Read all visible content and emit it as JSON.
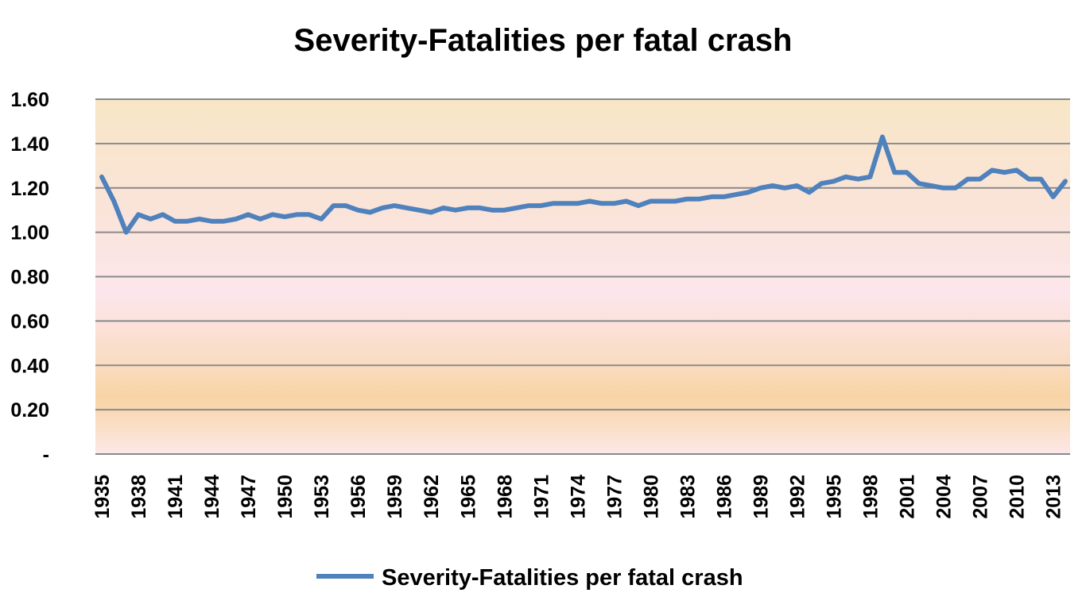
{
  "chart_data": {
    "type": "line",
    "title": "Severity-Fatalities per fatal crash",
    "xlabel": "",
    "ylabel": "",
    "ylim": [
      0,
      1.6
    ],
    "y_ticks": [
      "-",
      "0.20",
      "0.40",
      "0.60",
      "0.80",
      "1.00",
      "1.20",
      "1.40",
      "1.60"
    ],
    "x_tick_labels": [
      "1935",
      "1938",
      "1941",
      "1944",
      "1947",
      "1950",
      "1953",
      "1956",
      "1959",
      "1962",
      "1965",
      "1968",
      "1971",
      "1974",
      "1977",
      "1980",
      "1983",
      "1986",
      "1989",
      "1992",
      "1995",
      "1998",
      "2001",
      "2004",
      "2007",
      "2010",
      "2013"
    ],
    "grid": true,
    "legend_position": "bottom",
    "x": [
      1935,
      1936,
      1937,
      1938,
      1939,
      1940,
      1941,
      1942,
      1943,
      1944,
      1945,
      1946,
      1947,
      1948,
      1949,
      1950,
      1951,
      1952,
      1953,
      1954,
      1955,
      1956,
      1957,
      1958,
      1959,
      1960,
      1961,
      1962,
      1963,
      1964,
      1965,
      1966,
      1967,
      1968,
      1969,
      1970,
      1971,
      1972,
      1973,
      1974,
      1975,
      1976,
      1977,
      1978,
      1979,
      1980,
      1981,
      1982,
      1983,
      1984,
      1985,
      1986,
      1987,
      1988,
      1989,
      1990,
      1991,
      1992,
      1993,
      1994,
      1995,
      1996,
      1997,
      1998,
      1999,
      2000,
      2001,
      2002,
      2003,
      2004,
      2005,
      2006,
      2007,
      2008,
      2009,
      2010,
      2011,
      2012,
      2013,
      2014
    ],
    "series": [
      {
        "name": "Severity-Fatalities per fatal crash",
        "color": "#4f81bd",
        "values": [
          1.25,
          1.14,
          1.0,
          1.08,
          1.06,
          1.08,
          1.05,
          1.05,
          1.06,
          1.05,
          1.05,
          1.06,
          1.08,
          1.06,
          1.08,
          1.07,
          1.08,
          1.08,
          1.06,
          1.12,
          1.12,
          1.1,
          1.09,
          1.11,
          1.12,
          1.11,
          1.1,
          1.09,
          1.11,
          1.1,
          1.11,
          1.11,
          1.1,
          1.1,
          1.11,
          1.12,
          1.12,
          1.13,
          1.13,
          1.13,
          1.14,
          1.13,
          1.13,
          1.14,
          1.12,
          1.14,
          1.14,
          1.14,
          1.15,
          1.15,
          1.16,
          1.16,
          1.17,
          1.18,
          1.2,
          1.21,
          1.2,
          1.21,
          1.18,
          1.22,
          1.23,
          1.25,
          1.24,
          1.25,
          1.43,
          1.27,
          1.27,
          1.22,
          1.21,
          1.2,
          1.2,
          1.24,
          1.24,
          1.28,
          1.27,
          1.28,
          1.24,
          1.24,
          1.16,
          1.23
        ]
      }
    ]
  }
}
